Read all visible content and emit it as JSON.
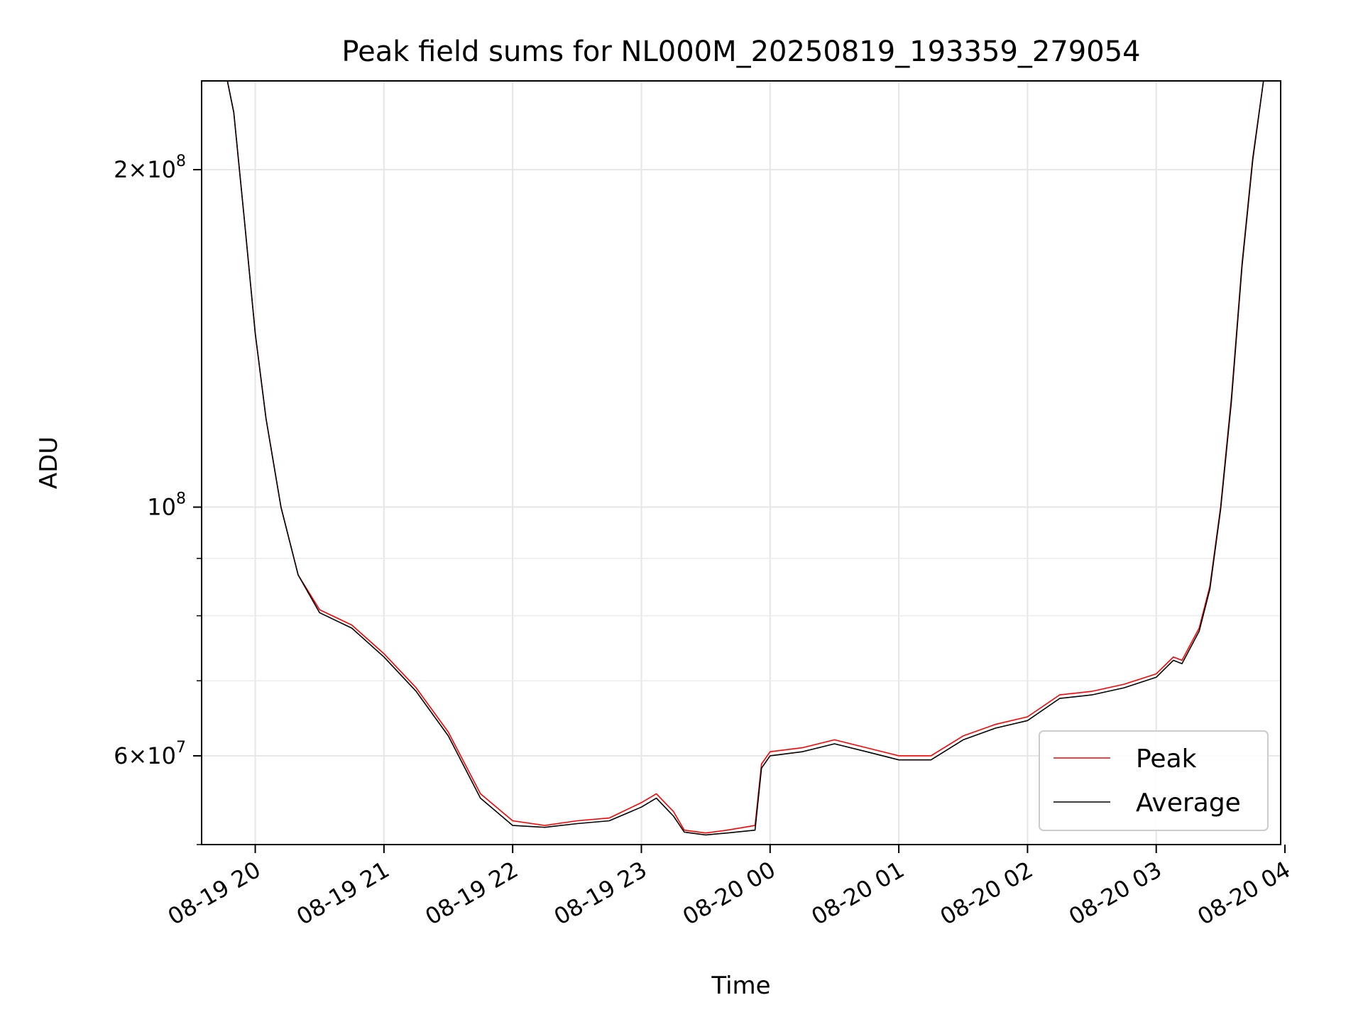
{
  "chart_data": {
    "type": "line",
    "title": "Peak field sums for NL000M_20250819_193359_279054",
    "xlabel": "Time",
    "ylabel": "ADU",
    "y_scale": "log",
    "grid": true,
    "legend_placement": "lower-right",
    "xlim": [
      "2025-08-19 19:35",
      "2025-08-20 03:58"
    ],
    "ylim": [
      50000000,
      240000000
    ],
    "x_ticks": [
      {
        "value": "2025-08-19 20:00",
        "label": "08-19 20"
      },
      {
        "value": "2025-08-19 21:00",
        "label": "08-19 21"
      },
      {
        "value": "2025-08-19 22:00",
        "label": "08-19 22"
      },
      {
        "value": "2025-08-19 23:00",
        "label": "08-19 23"
      },
      {
        "value": "2025-08-20 00:00",
        "label": "08-20 00"
      },
      {
        "value": "2025-08-20 01:00",
        "label": "08-20 01"
      },
      {
        "value": "2025-08-20 02:00",
        "label": "08-20 02"
      },
      {
        "value": "2025-08-20 03:00",
        "label": "08-20 03"
      },
      {
        "value": "2025-08-20 04:00",
        "label": "08-20 04"
      }
    ],
    "y_ticks_major": [
      {
        "value": 60000000,
        "base": "6",
        "exp": "7"
      },
      {
        "value": 100000000,
        "base": "",
        "exp": "8"
      },
      {
        "value": 200000000,
        "base": "2",
        "exp": "8"
      }
    ],
    "y_ticks_minor": [
      50000000,
      70000000,
      80000000,
      90000000
    ],
    "colors": {
      "peak": "#ff0000",
      "average": "#000000"
    },
    "x": [
      "2025-08-19 19:35",
      "2025-08-19 19:47",
      "2025-08-19 19:50",
      "2025-08-19 19:55",
      "2025-08-19 20:00",
      "2025-08-19 20:05",
      "2025-08-19 20:12",
      "2025-08-19 20:20",
      "2025-08-19 20:30",
      "2025-08-19 20:45",
      "2025-08-19 21:00",
      "2025-08-19 21:15",
      "2025-08-19 21:30",
      "2025-08-19 21:45",
      "2025-08-19 22:00",
      "2025-08-19 22:15",
      "2025-08-19 22:30",
      "2025-08-19 22:45",
      "2025-08-19 23:00",
      "2025-08-19 23:07",
      "2025-08-19 23:15",
      "2025-08-19 23:20",
      "2025-08-19 23:30",
      "2025-08-19 23:40",
      "2025-08-19 23:53",
      "2025-08-19 23:56",
      "2025-08-20 00:00",
      "2025-08-20 00:15",
      "2025-08-20 00:30",
      "2025-08-20 00:45",
      "2025-08-20 01:00",
      "2025-08-20 01:15",
      "2025-08-20 01:30",
      "2025-08-20 01:45",
      "2025-08-20 02:00",
      "2025-08-20 02:15",
      "2025-08-20 02:30",
      "2025-08-20 02:45",
      "2025-08-20 03:00",
      "2025-08-20 03:08",
      "2025-08-20 03:12",
      "2025-08-20 03:20",
      "2025-08-20 03:25",
      "2025-08-20 03:30",
      "2025-08-20 03:35",
      "2025-08-20 03:40",
      "2025-08-20 03:45",
      "2025-08-20 03:50",
      "2025-08-20 03:52",
      "2025-08-20 03:58"
    ],
    "series": [
      {
        "name": "Peak",
        "values": [
          240000000,
          240000000,
          225000000,
          180000000,
          143000000,
          120000000,
          100000000,
          87000000,
          81000000,
          78500000,
          74000000,
          69000000,
          63000000,
          55500000,
          52500000,
          52000000,
          52500000,
          52800000,
          54500000,
          55500000,
          53500000,
          51500000,
          51200000,
          51500000,
          52000000,
          59000000,
          60500000,
          61000000,
          62000000,
          61000000,
          60000000,
          60000000,
          62500000,
          64000000,
          65000000,
          68000000,
          68500000,
          69500000,
          71000000,
          73500000,
          73000000,
          78000000,
          85000000,
          100000000,
          125000000,
          165000000,
          205000000,
          240000000,
          240000000,
          240000000
        ]
      },
      {
        "name": "Average",
        "values": [
          240000000,
          240000000,
          225000000,
          180000000,
          143000000,
          120000000,
          100000000,
          87000000,
          80500000,
          78000000,
          73500000,
          68500000,
          62500000,
          55000000,
          52000000,
          51800000,
          52200000,
          52500000,
          54000000,
          55000000,
          53000000,
          51300000,
          51000000,
          51200000,
          51500000,
          58500000,
          60000000,
          60500000,
          61500000,
          60500000,
          59500000,
          59500000,
          62000000,
          63500000,
          64500000,
          67500000,
          68000000,
          69000000,
          70500000,
          73000000,
          72500000,
          77500000,
          84500000,
          99500000,
          124000000,
          164000000,
          204000000,
          240000000,
          240000000,
          240000000
        ]
      }
    ]
  }
}
